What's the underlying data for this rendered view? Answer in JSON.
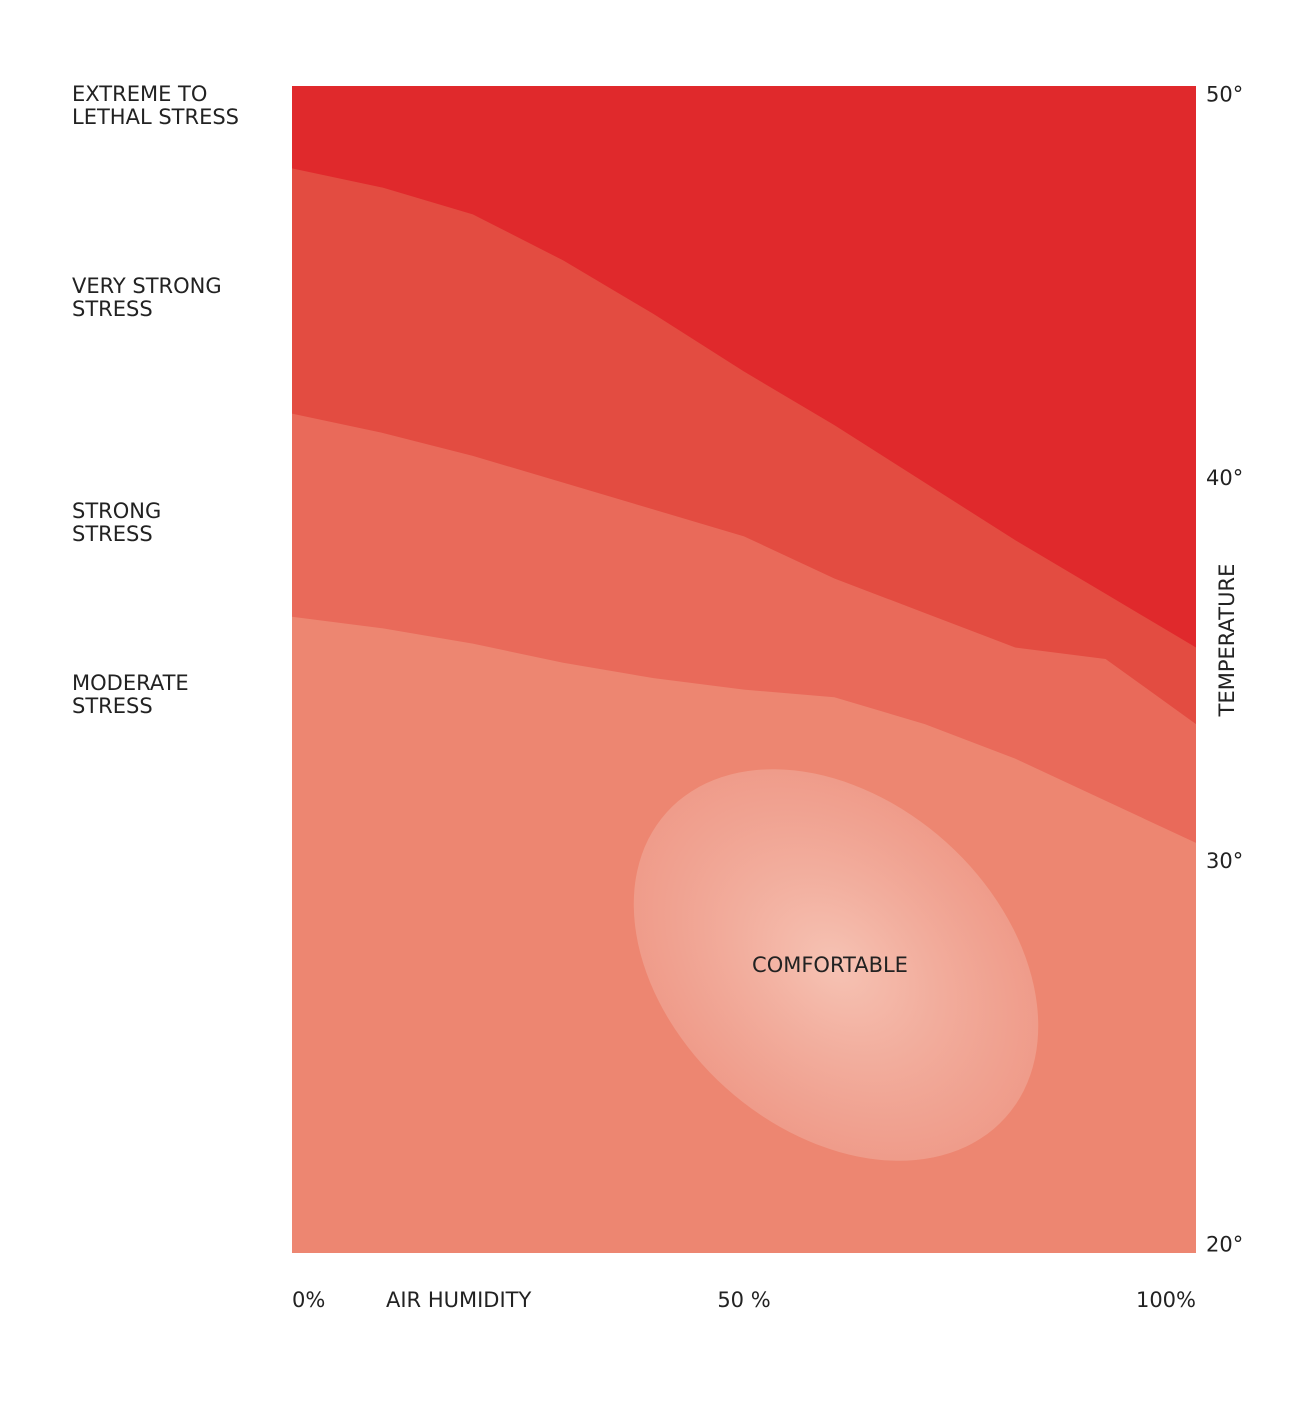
{
  "chart_data": {
    "type": "area",
    "x": [
      0,
      10,
      20,
      30,
      40,
      50,
      60,
      70,
      80,
      90,
      100
    ],
    "background": {
      "name": [
        "EXTREME TO",
        "LETHAL STRESS"
      ],
      "color": "#e0292c"
    },
    "series": [
      {
        "name": [
          "VERY STRONG",
          "STRESS"
        ],
        "color": "#e34c41",
        "values": [
          48.1,
          47.6,
          46.9,
          45.7,
          44.3,
          42.8,
          41.4,
          39.9,
          38.4,
          37.0,
          35.6
        ]
      },
      {
        "name": [
          "STRONG",
          "STRESS"
        ],
        "color": "#e96a5a",
        "values": [
          41.7,
          41.2,
          40.6,
          39.9,
          39.2,
          38.5,
          37.4,
          36.5,
          35.6,
          35.3,
          33.6
        ]
      },
      {
        "name": [
          "MODERATE",
          "STRESS"
        ],
        "color": "#ed8671",
        "values": [
          36.4,
          36.1,
          35.7,
          35.2,
          34.8,
          34.5,
          34.3,
          33.6,
          32.7,
          31.6,
          30.5
        ]
      }
    ],
    "annotation": "COMFORTABLE",
    "xlabel": "AIR HUMIDITY",
    "ylabel": "TEMPERATURE",
    "xlim": [
      0,
      100
    ],
    "ylim": [
      19.8,
      50.25
    ],
    "xticks": [
      {
        "value": 0,
        "label": "0%"
      },
      {
        "value": 50,
        "label": "50 %"
      },
      {
        "value": 100,
        "label": "100%"
      }
    ],
    "yticks": [
      {
        "value": 50,
        "label": "50°"
      },
      {
        "value": 40,
        "label": "40°"
      },
      {
        "value": 30,
        "label": "30°"
      },
      {
        "value": 20,
        "label": "20°"
      }
    ]
  }
}
